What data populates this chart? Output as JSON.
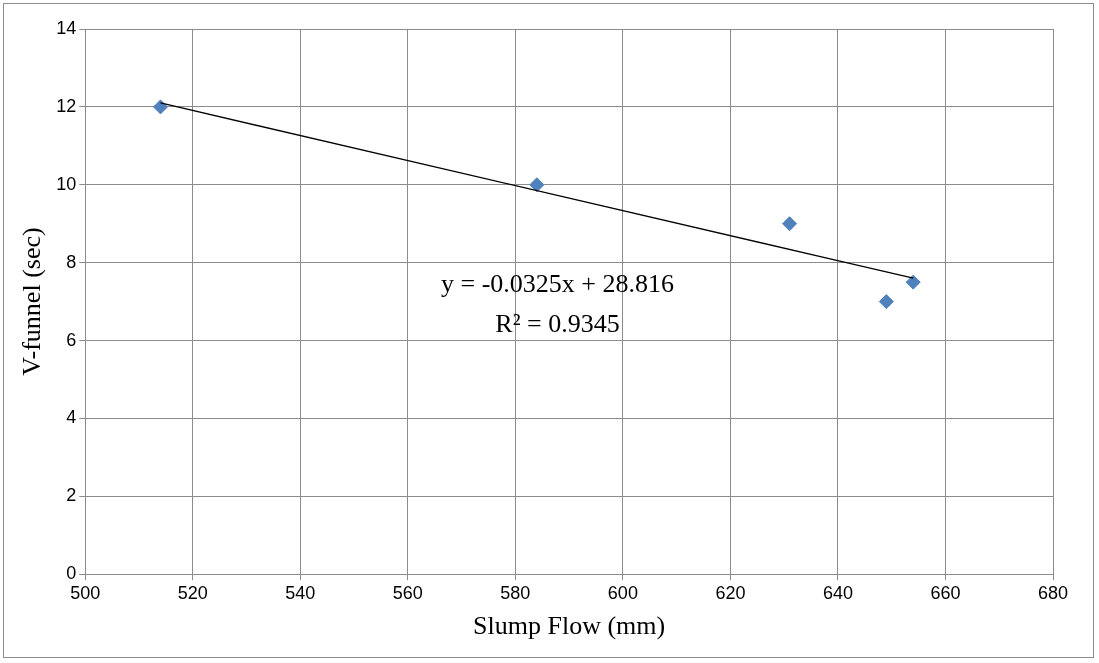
{
  "chart_data": {
    "type": "scatter",
    "xlabel": "Slump Flow (mm)",
    "ylabel": "V-funnel (sec)",
    "xlim": [
      500,
      680
    ],
    "xticks": [
      500,
      520,
      540,
      560,
      580,
      600,
      620,
      640,
      660,
      680
    ],
    "ylim": [
      0,
      14
    ],
    "yticks": [
      0,
      2,
      4,
      6,
      8,
      10,
      12,
      14
    ],
    "grid": true,
    "legend": false,
    "marker": "diamond",
    "series": [
      {
        "type": "scatter",
        "color": "#4f81bd",
        "x": [
          514,
          584,
          631,
          649,
          654
        ],
        "values": [
          12,
          10,
          9,
          7,
          7.5
        ]
      },
      {
        "type": "line",
        "color": "#000000",
        "x": [
          514,
          654
        ],
        "values": [
          12.1,
          7.6
        ],
        "marker": "none"
      }
    ],
    "annotations": [
      "y = -0.0325x + 28.816",
      "R² = 0.9345"
    ]
  }
}
